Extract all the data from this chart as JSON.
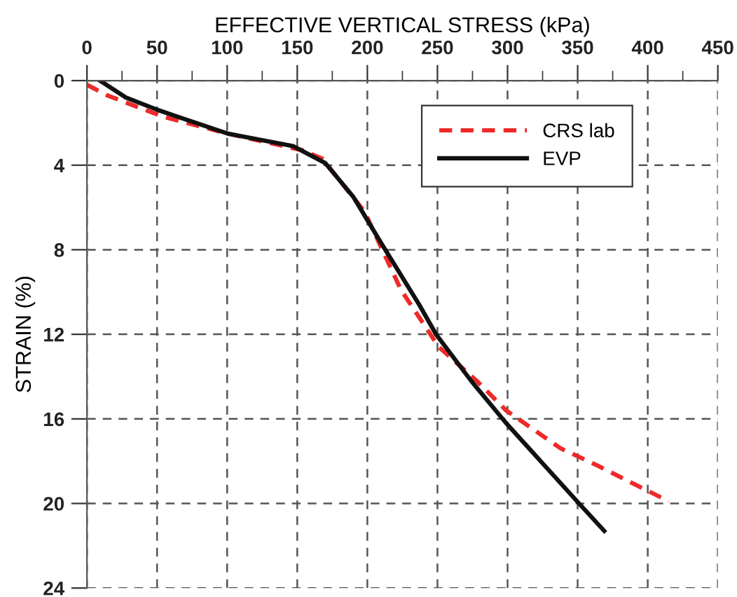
{
  "chart_data": {
    "type": "line",
    "xlabel": "EFFECTIVE VERTICAL STRESS (kPa)",
    "ylabel": "STRAIN (%)",
    "xlim": [
      0,
      450
    ],
    "ylim": [
      24,
      0
    ],
    "xticks": [
      0,
      {
        "value": 25,
        "label": null
      },
      50,
      {
        "value": 75,
        "label": null
      },
      100,
      {
        "value": 125,
        "label": null
      },
      150,
      {
        "value": 175,
        "label": null
      },
      200,
      {
        "value": 225,
        "label": null
      },
      250,
      {
        "value": 275,
        "label": null
      },
      300,
      {
        "value": 325,
        "label": null
      },
      350,
      {
        "value": 375,
        "label": null
      },
      400,
      {
        "value": 425,
        "label": null
      },
      450
    ],
    "yticks": [
      0,
      4,
      8,
      12,
      16,
      20,
      24
    ],
    "grid": true,
    "legend": "top right",
    "series": [
      {
        "name": "CRS lab",
        "color": "#ee2a2a",
        "line_style": "dashed",
        "x": [
          0,
          14.5,
          54,
          100,
          154,
          168,
          198,
          224,
          251,
          278,
          299,
          338,
          364,
          397,
          415
        ],
        "values": [
          0.2,
          0.7,
          1.7,
          2.5,
          3.3,
          3.7,
          6.2,
          9.9,
          12.6,
          14.2,
          15.6,
          17.4,
          18.2,
          19.3,
          19.9
        ]
      },
      {
        "name": "EVP",
        "color": "#111111",
        "line_style": "solid",
        "x": [
          9.3,
          27.7,
          51,
          100,
          147,
          170,
          190,
          210,
          237,
          249,
          274,
          299,
          325,
          351,
          369
        ],
        "values": [
          0,
          0.8,
          1.4,
          2.5,
          3.1,
          3.9,
          5.5,
          7.7,
          10.6,
          12.0,
          14.2,
          16.2,
          18.1,
          20.0,
          21.3
        ]
      }
    ]
  }
}
